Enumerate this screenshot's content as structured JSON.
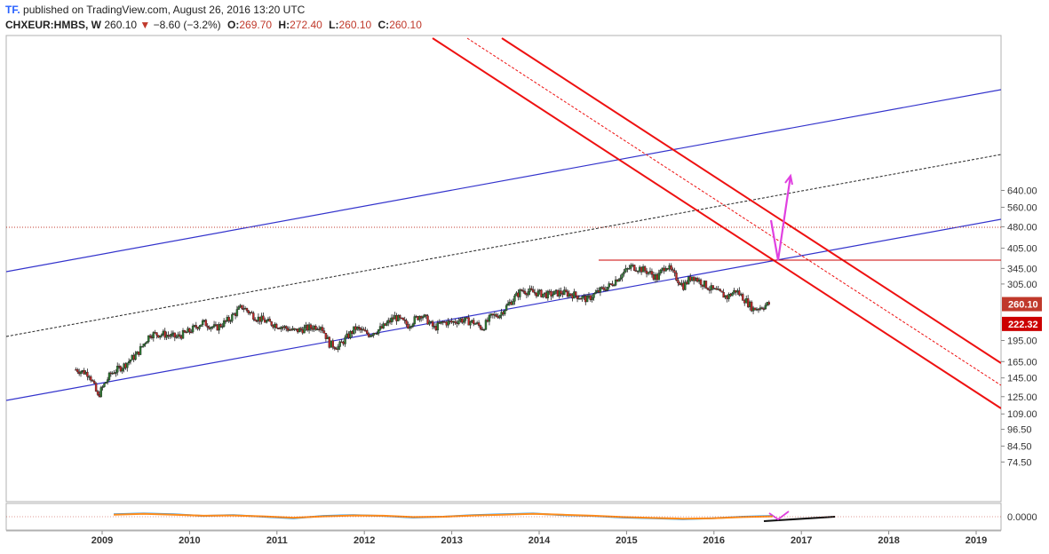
{
  "header": {
    "logo": "TF.",
    "published": "published on TradingView.com, August 26, 2016 13:20 UTC"
  },
  "symbol_bar": {
    "symbol": "CHXEUR:HMBS, W",
    "last": "260.10",
    "change": "−8.60 (−3.2%)",
    "open_label": "O:",
    "open": "269.70",
    "high_label": "H:",
    "high": "272.40",
    "low_label": "L:",
    "low": "260.10",
    "close_label": "C:",
    "close": "260.10"
  },
  "colors": {
    "up": "#2e7d32",
    "down": "#c62828",
    "channel_blue": "#3333cc",
    "channel_red": "#ee1111",
    "projection": "#e040e0",
    "osc_blue": "#2196f3",
    "osc_orange": "#ff8c1a"
  },
  "chart_data": [
    {
      "type": "line",
      "kind": "candlestick (weekly)",
      "title": "",
      "scale": "log",
      "ylim": [
        68,
        660
      ],
      "y_ticks": [
        "640.00",
        "560.00",
        "480.00",
        "405.00",
        "345.00",
        "305.00",
        "260.10",
        "222.32",
        "195.00",
        "165.00",
        "145.00",
        "125.00",
        "109.00",
        "96.50",
        "84.50",
        "74.50"
      ],
      "x_ticks": [
        "2009",
        "2010",
        "2011",
        "2012",
        "2013",
        "2014",
        "2015",
        "2016",
        "2017",
        "2018",
        "2019"
      ],
      "price_tags": [
        {
          "value": 260.1,
          "label": "260.10"
        },
        {
          "value": 222.32,
          "label": "222.32"
        }
      ],
      "series": [
        {
          "name": "",
          "x": [
            2008.7,
            2008.85,
            2008.95,
            2009.1,
            2009.25,
            2009.4,
            2009.55,
            2009.7,
            2009.85,
            2010.0,
            2010.15,
            2010.3,
            2010.45,
            2010.6,
            2010.75,
            2010.9,
            2011.05,
            2011.2,
            2011.35,
            2011.5,
            2011.6,
            2011.7,
            2011.8,
            2011.9,
            2012.05,
            2012.2,
            2012.35,
            2012.5,
            2012.65,
            2012.8,
            2012.9,
            2013.0,
            2013.1,
            2013.25,
            2013.35,
            2013.45,
            2013.55,
            2013.7,
            2013.8,
            2013.95,
            2014.1,
            2014.25,
            2014.4,
            2014.55,
            2014.7,
            2014.8,
            2014.95,
            2015.05,
            2015.15,
            2015.25,
            2015.35,
            2015.45,
            2015.55,
            2015.65,
            2015.75,
            2015.85,
            2015.95,
            2016.05,
            2016.15,
            2016.25,
            2016.35,
            2016.45,
            2016.55,
            2016.65
          ],
          "values": [
            155,
            150,
            125,
            150,
            160,
            175,
            205,
            205,
            200,
            210,
            225,
            215,
            230,
            255,
            235,
            225,
            218,
            210,
            215,
            220,
            190,
            185,
            200,
            215,
            205,
            215,
            235,
            220,
            240,
            215,
            225,
            225,
            230,
            225,
            215,
            235,
            240,
            270,
            290,
            285,
            280,
            285,
            280,
            270,
            290,
            300,
            330,
            350,
            345,
            335,
            320,
            355,
            325,
            300,
            325,
            310,
            295,
            285,
            275,
            290,
            270,
            250,
            255,
            262
          ]
        }
      ]
    },
    {
      "type": "line",
      "title": "",
      "ylim": [
        -0.5,
        0.5
      ],
      "y_ticks": [
        "0.0000"
      ],
      "series": [
        {
          "name": "",
          "values": [
            0.15,
            0.2,
            0.15,
            0.05,
            0.1,
            0.0,
            -0.1,
            0.05,
            0.1,
            0.05,
            -0.05,
            0.0,
            0.1,
            0.15,
            0.2,
            0.1,
            0.05,
            -0.05,
            -0.1,
            -0.15,
            -0.1,
            0.0,
            0.05
          ]
        },
        {
          "name": "",
          "values": [
            0.12,
            0.18,
            0.12,
            0.06,
            0.08,
            0.02,
            -0.06,
            0.02,
            0.08,
            0.06,
            -0.02,
            0.0,
            0.08,
            0.12,
            0.18,
            0.12,
            0.06,
            -0.02,
            -0.08,
            -0.12,
            -0.1,
            -0.02,
            0.02
          ]
        }
      ]
    }
  ]
}
